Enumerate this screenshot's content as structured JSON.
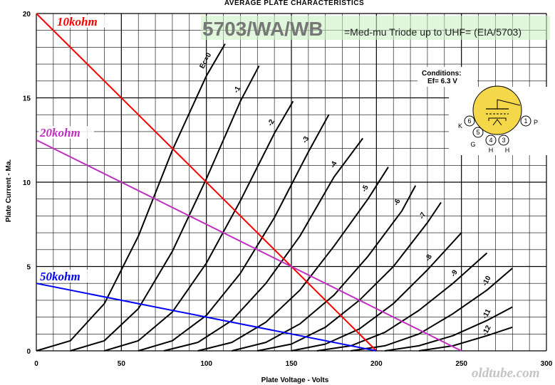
{
  "chart_data": {
    "type": "line",
    "title": "AVERAGE PLATE CHARACTERISTICS",
    "xlabel": "Plate Voltage - Volts",
    "ylabel": "Plate Current - Ma.",
    "xlim": [
      0,
      300
    ],
    "ylim": [
      0,
      20
    ],
    "x_ticks": [
      "0",
      "50",
      "100",
      "150",
      "200",
      "250",
      "300"
    ],
    "y_ticks": [
      "0",
      "5",
      "10",
      "15",
      "20"
    ],
    "grid": true,
    "series": [
      {
        "name": "Ec=0",
        "x": [
          0,
          20,
          40,
          60,
          80,
          100,
          111
        ],
        "y": [
          0,
          0.6,
          2.8,
          6.8,
          11.9,
          16.3,
          18.2
        ]
      },
      {
        "name": "-1",
        "x": [
          20,
          40,
          60,
          80,
          100,
          120,
          131
        ],
        "y": [
          0,
          0.6,
          2.5,
          5.9,
          10.2,
          14.8,
          16.9
        ]
      },
      {
        "name": "-2",
        "x": [
          40,
          60,
          80,
          100,
          120,
          140,
          151
        ],
        "y": [
          0,
          0.6,
          2.3,
          5.2,
          8.9,
          12.9,
          14.8
        ]
      },
      {
        "name": "-3",
        "x": [
          60,
          80,
          100,
          120,
          140,
          160,
          172
        ],
        "y": [
          0,
          0.6,
          2.1,
          4.6,
          7.9,
          11.8,
          14.0
        ]
      },
      {
        "name": "-4",
        "x": [
          75,
          95,
          115,
          135,
          155,
          175,
          192
        ],
        "y": [
          0,
          0.5,
          1.8,
          4.0,
          6.8,
          10.3,
          12.6
        ]
      },
      {
        "name": "-5",
        "x": [
          95,
          115,
          135,
          155,
          175,
          195,
          207
        ],
        "y": [
          0,
          0.5,
          1.7,
          3.6,
          6.2,
          9.0,
          10.9
        ]
      },
      {
        "name": "-6",
        "x": [
          115,
          135,
          155,
          175,
          195,
          215,
          223
        ],
        "y": [
          0,
          0.5,
          1.6,
          3.3,
          5.6,
          8.3,
          9.8
        ]
      },
      {
        "name": "-7",
        "x": [
          130,
          150,
          170,
          190,
          210,
          230,
          238
        ],
        "y": [
          0,
          0.4,
          1.4,
          3.0,
          5.0,
          7.6,
          8.8
        ]
      },
      {
        "name": "-8",
        "x": [
          150,
          170,
          190,
          210,
          230,
          250
        ],
        "y": [
          0,
          0.4,
          1.3,
          2.8,
          4.8,
          7.0
        ]
      },
      {
        "name": "-9",
        "x": [
          165,
          185,
          205,
          225,
          245,
          265
        ],
        "y": [
          0,
          0.3,
          1.1,
          2.4,
          4.0,
          5.8
        ]
      },
      {
        "name": "-10",
        "x": [
          185,
          205,
          225,
          245,
          265,
          280
        ],
        "y": [
          0,
          0.3,
          1.0,
          2.2,
          3.6,
          4.9
        ]
      },
      {
        "name": "-11",
        "x": [
          205,
          225,
          245,
          265,
          280
        ],
        "y": [
          0,
          0.3,
          0.9,
          1.8,
          2.6
        ]
      },
      {
        "name": "-12",
        "x": [
          225,
          245,
          265,
          280
        ],
        "y": [
          0,
          0.3,
          0.9,
          1.4
        ]
      }
    ],
    "load_lines": [
      {
        "name": "10kohm",
        "color": "#ff0000",
        "x": [
          0,
          200
        ],
        "y": [
          20,
          0
        ]
      },
      {
        "name": "20kohm",
        "color": "#c030c0",
        "x": [
          0,
          250
        ],
        "y": [
          12.5,
          0
        ]
      },
      {
        "name": "50kohm",
        "color": "#0000ff",
        "x": [
          0,
          200
        ],
        "y": [
          4,
          0
        ]
      }
    ]
  },
  "banner": {
    "tube": "5703/WA/WB",
    "description": "=Med-mu Triode up to UHF= (EIA/5703)"
  },
  "conditions": {
    "heading": "Conditions:",
    "ef": "Ef= 6.3 V"
  },
  "basing_diagram": {
    "fill_color": "#f5d84a",
    "pins": [
      {
        "number": "6",
        "name": "K"
      },
      {
        "number": "5",
        "name": "G"
      },
      {
        "number": "4",
        "name": "H"
      },
      {
        "number": "3",
        "name": "H"
      },
      {
        "number": "1",
        "name": "P"
      }
    ]
  },
  "watermark": "oldtube.com"
}
